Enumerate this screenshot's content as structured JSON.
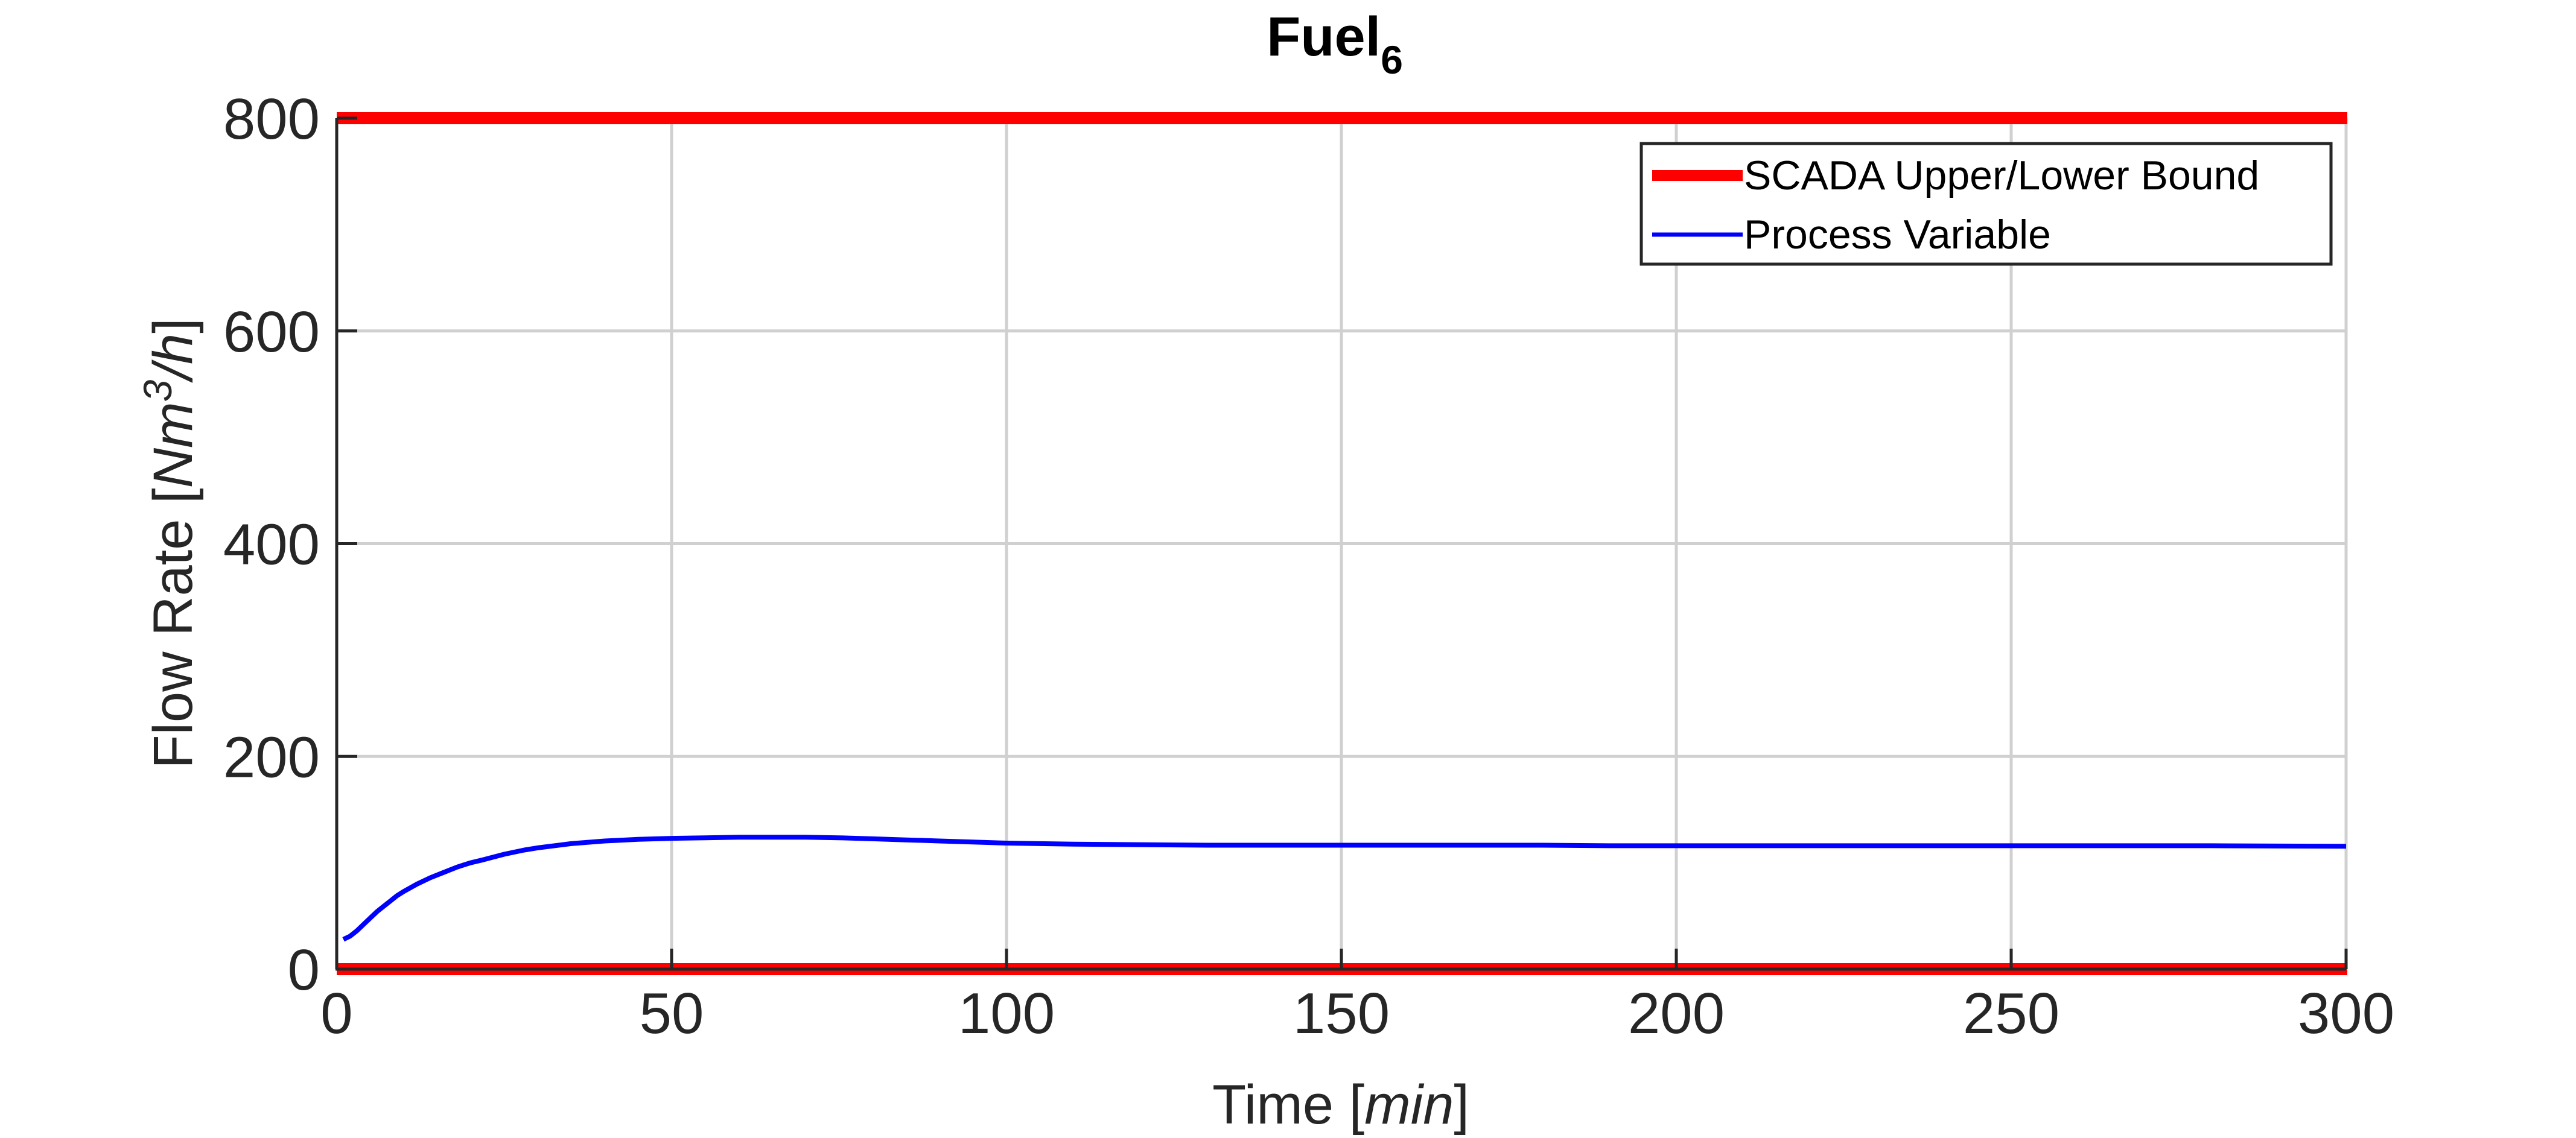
{
  "chart_data": {
    "type": "line",
    "title": "Fuel",
    "title_subscript": "6",
    "xlabel_prefix": "Time [",
    "xlabel_unit": "min",
    "xlabel_suffix": "]",
    "ylabel_prefix": "Flow Rate [",
    "ylabel_unit": "Nm",
    "ylabel_unit_superscript": "3",
    "ylabel_unit_tail": "/h",
    "ylabel_suffix": "]",
    "xlim": [
      0,
      300
    ],
    "ylim": [
      0,
      800
    ],
    "xticks": [
      "0",
      "50",
      "100",
      "150",
      "200",
      "250",
      "300"
    ],
    "yticks": [
      "0",
      "200",
      "400",
      "600",
      "800"
    ],
    "grid": true,
    "legend_position": "top-right",
    "bounds": {
      "name": "SCADA Upper/Lower Bound",
      "color": "#ff0000",
      "upper": 800,
      "lower": 0
    },
    "series": [
      {
        "name": "Process Variable",
        "color": "#0000ff",
        "x": [
          1,
          2,
          3,
          4,
          5,
          6,
          7,
          8,
          9,
          10,
          12,
          14,
          16,
          18,
          20,
          22,
          25,
          28,
          30,
          35,
          40,
          45,
          50,
          55,
          60,
          65,
          70,
          75,
          80,
          85,
          90,
          95,
          100,
          110,
          120,
          130,
          140,
          150,
          160,
          170,
          180,
          190,
          200,
          220,
          240,
          260,
          280,
          300
        ],
        "y": [
          28,
          31,
          36,
          42,
          48,
          54,
          59,
          64,
          69,
          73,
          80,
          86,
          91,
          96,
          100,
          103,
          108,
          112,
          114,
          118,
          120.5,
          122,
          123,
          123.5,
          124,
          124,
          124,
          123.5,
          122.5,
          121.5,
          120.5,
          119.5,
          118.5,
          117.5,
          117,
          116.5,
          116.5,
          116.5,
          116.5,
          116.5,
          116.5,
          116,
          116,
          116,
          116,
          116,
          116,
          115.5
        ]
      }
    ]
  }
}
